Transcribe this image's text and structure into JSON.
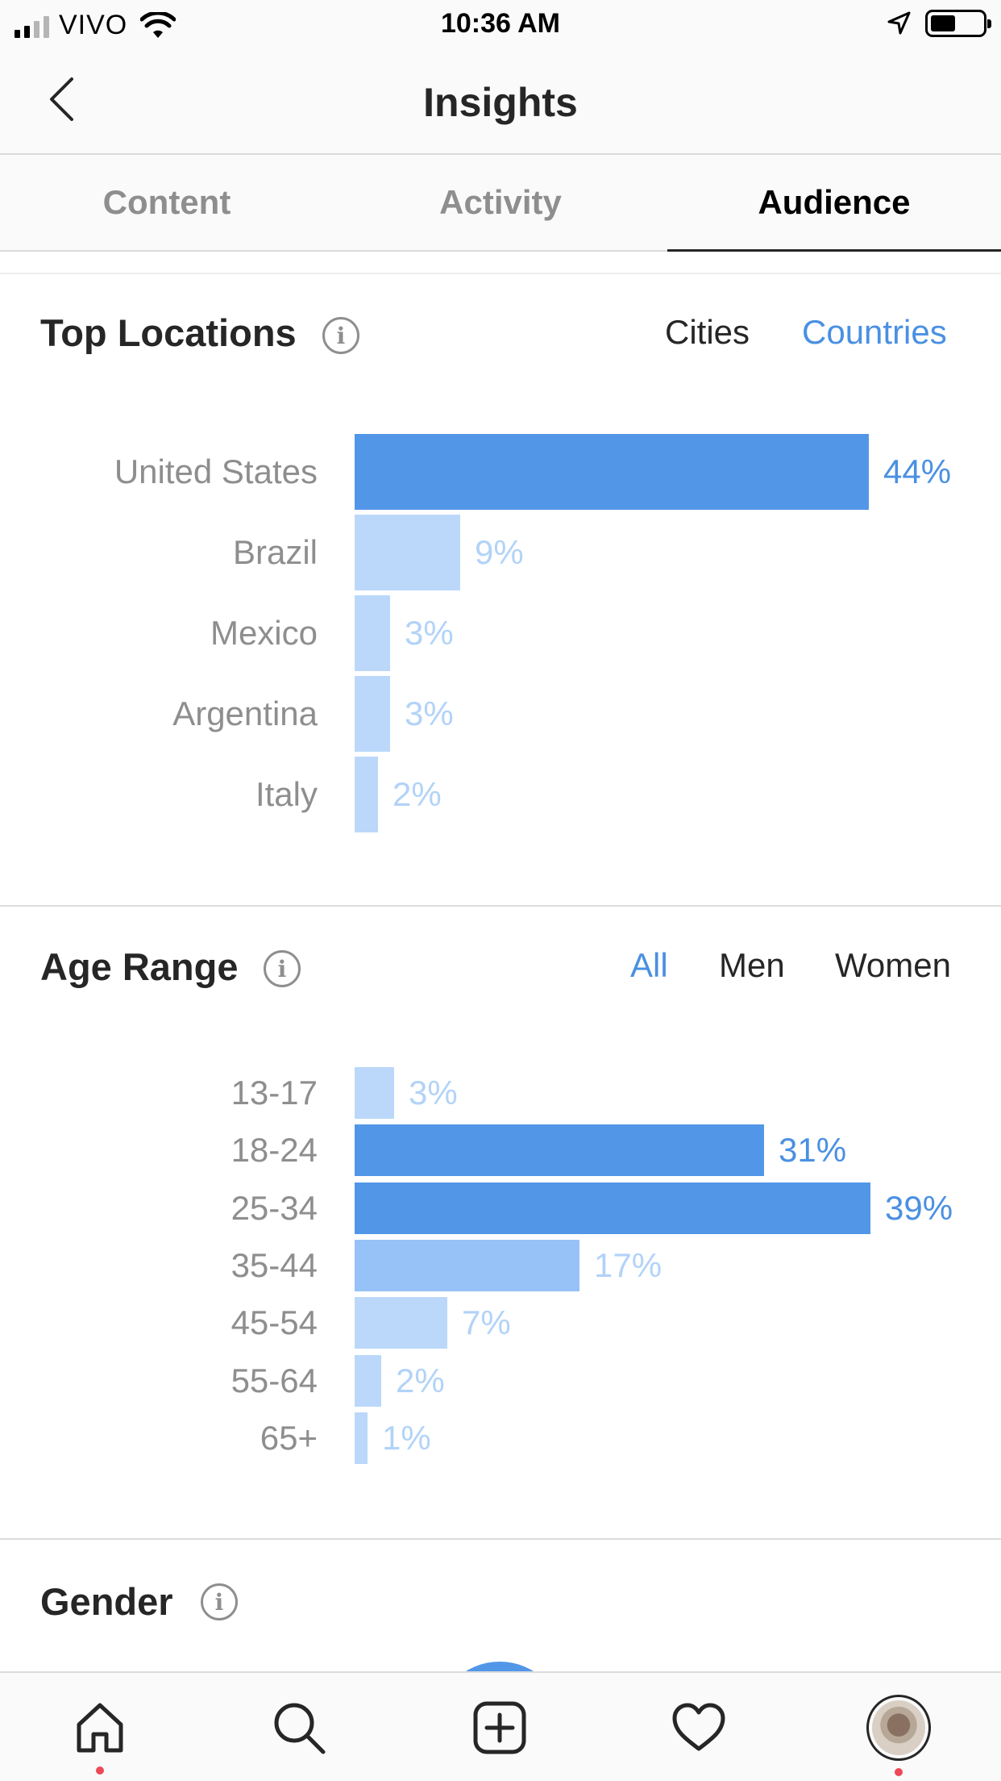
{
  "status_bar": {
    "carrier": "VIVO",
    "time": "10:36 AM"
  },
  "header": {
    "title": "Insights"
  },
  "tabs": [
    {
      "label": "Content"
    },
    {
      "label": "Activity"
    },
    {
      "label": "Audience"
    }
  ],
  "top_locations": {
    "title": "Top Locations",
    "filters": [
      {
        "label": "Cities"
      },
      {
        "label": "Countries"
      }
    ],
    "rows": [
      {
        "label": "United States",
        "value": "44%",
        "percent": 44
      },
      {
        "label": "Brazil",
        "value": "9%",
        "percent": 9
      },
      {
        "label": "Mexico",
        "value": "3%",
        "percent": 3
      },
      {
        "label": "Argentina",
        "value": "3%",
        "percent": 3
      },
      {
        "label": "Italy",
        "value": "2%",
        "percent": 2
      }
    ]
  },
  "age_range": {
    "title": "Age Range",
    "filters": [
      {
        "label": "All"
      },
      {
        "label": "Men"
      },
      {
        "label": "Women"
      }
    ],
    "rows": [
      {
        "label": "13-17",
        "value": "3%",
        "percent": 3
      },
      {
        "label": "18-24",
        "value": "31%",
        "percent": 31
      },
      {
        "label": "25-34",
        "value": "39%",
        "percent": 39
      },
      {
        "label": "35-44",
        "value": "17%",
        "percent": 17
      },
      {
        "label": "45-54",
        "value": "7%",
        "percent": 7
      },
      {
        "label": "55-64",
        "value": "2%",
        "percent": 2
      },
      {
        "label": "65+",
        "value": "1%",
        "percent": 1
      }
    ]
  },
  "gender": {
    "title": "Gender"
  },
  "colors": {
    "accent": "#4a90e2",
    "bar_strong": "#5296e8",
    "bar_medium": "#96c2f7",
    "bar_light": "#bbd8fa",
    "value_light": "#b2d3f8"
  },
  "tab_bar": {
    "icons": [
      "home-icon",
      "search-icon",
      "new-post-icon",
      "activity-heart-icon",
      "profile-avatar"
    ]
  }
}
